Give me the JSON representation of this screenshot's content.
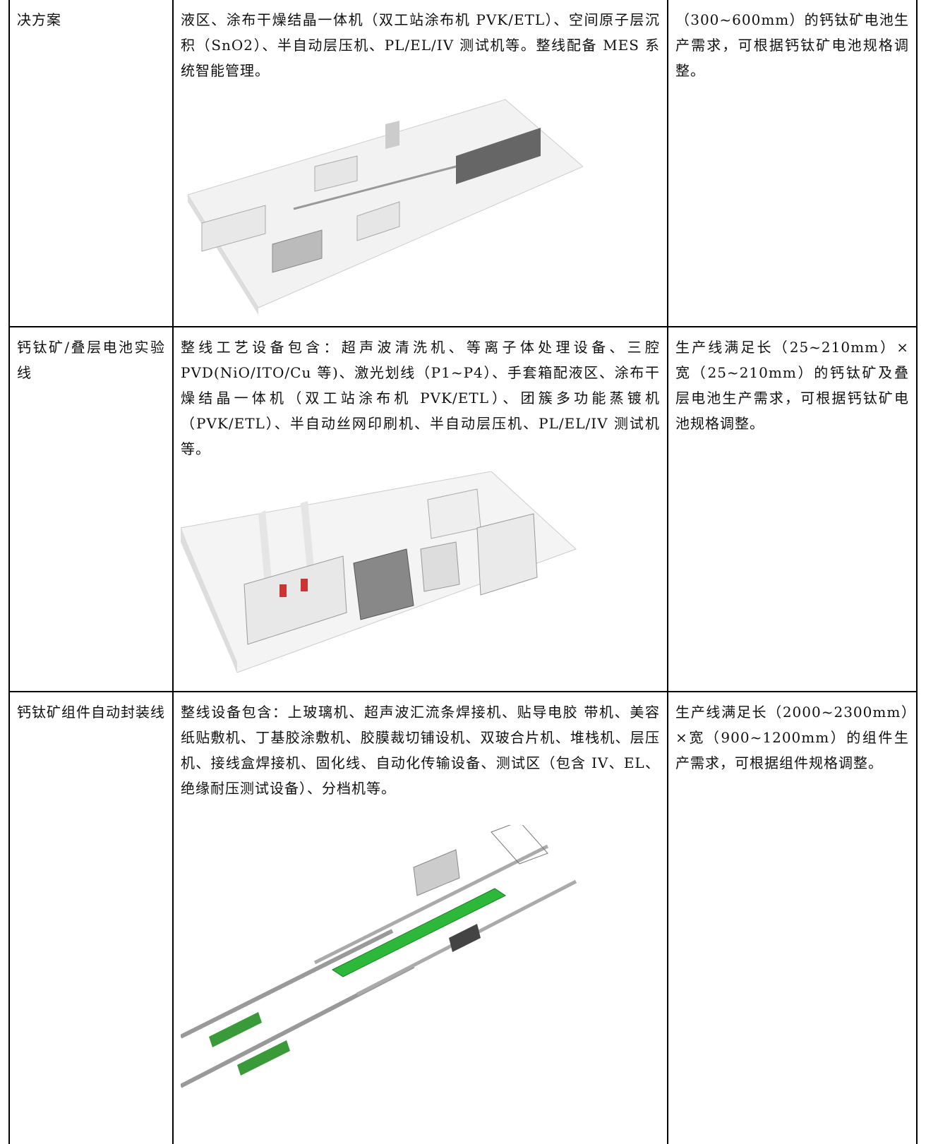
{
  "table": {
    "rows": [
      [
        "决方案",
        "液区、涂布干燥结晶一体机（双工站涂布机 PVK/ETL）、空间原子层沉积（SnO2）、半自动层压机、PL/EL/IV 测试机等。整线配备 MES 系统智能管理。",
        "（300~600mm）的钙钛矿电池生产需求，可根据钙钛矿电池规格调整。"
      ],
      [
        "钙钛矿/叠层电池实验线",
        "整线工艺设备包含：超声波清洗机、等离子体处理设备、三腔 PVD(NiO/ITO/Cu 等)、激光划线（P1~P4）、手套箱配液区、涂布干燥结晶一体机（双工站涂布机 PVK/ETL）、团簇多功能蒸镀机（PVK/ETL）、半自动丝网印刷机、半自动层压机、PL/EL/IV 测试机等。",
        "生产线满足长（25~210mm）×宽（25~210mm）的钙钛矿及叠层电池生产需求，可根据钙钛矿电池规格调整。"
      ],
      [
        "钙钛矿组件自动封装线",
        "整线设备包含：上玻璃机、超声波汇流条焊接机、贴导电胶 带机、美容纸贴敷机、丁基胶涂敷机、胶膜裁切铺设机、双玻合片机、堆栈机、层压机、接线盒焊接机、固化线、自动化传输设备、测试区（包含 IV、EL、绝缘耐压测试设备）、分档机等。",
        "生产线满足长（2000~2300mm）×宽（900~1200mm）的组件生产需求，可根据组件规格调整。"
      ]
    ]
  }
}
